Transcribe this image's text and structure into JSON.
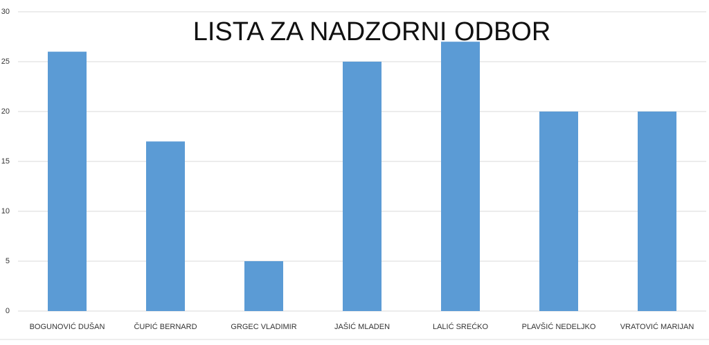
{
  "chart_data": {
    "type": "bar",
    "title": "LISTA ZA NADZORNI ODBOR",
    "categories": [
      "BOGUNOVIĆ DUŠAN",
      "ČUPIĆ BERNARD",
      "GRGEC VLADIMIR",
      "JAŠIĆ MLADEN",
      "LALIĆ SREĆKO",
      "PLAVŠIĆ NEDELJKO",
      "VRATOVIĆ MARIJAN"
    ],
    "values": [
      26,
      17,
      5,
      25,
      27,
      20,
      20
    ],
    "color": "#5b9bd5",
    "ylim": [
      0,
      30
    ],
    "yticks": [
      0,
      5,
      10,
      15,
      20,
      25,
      30
    ],
    "grid": true
  }
}
